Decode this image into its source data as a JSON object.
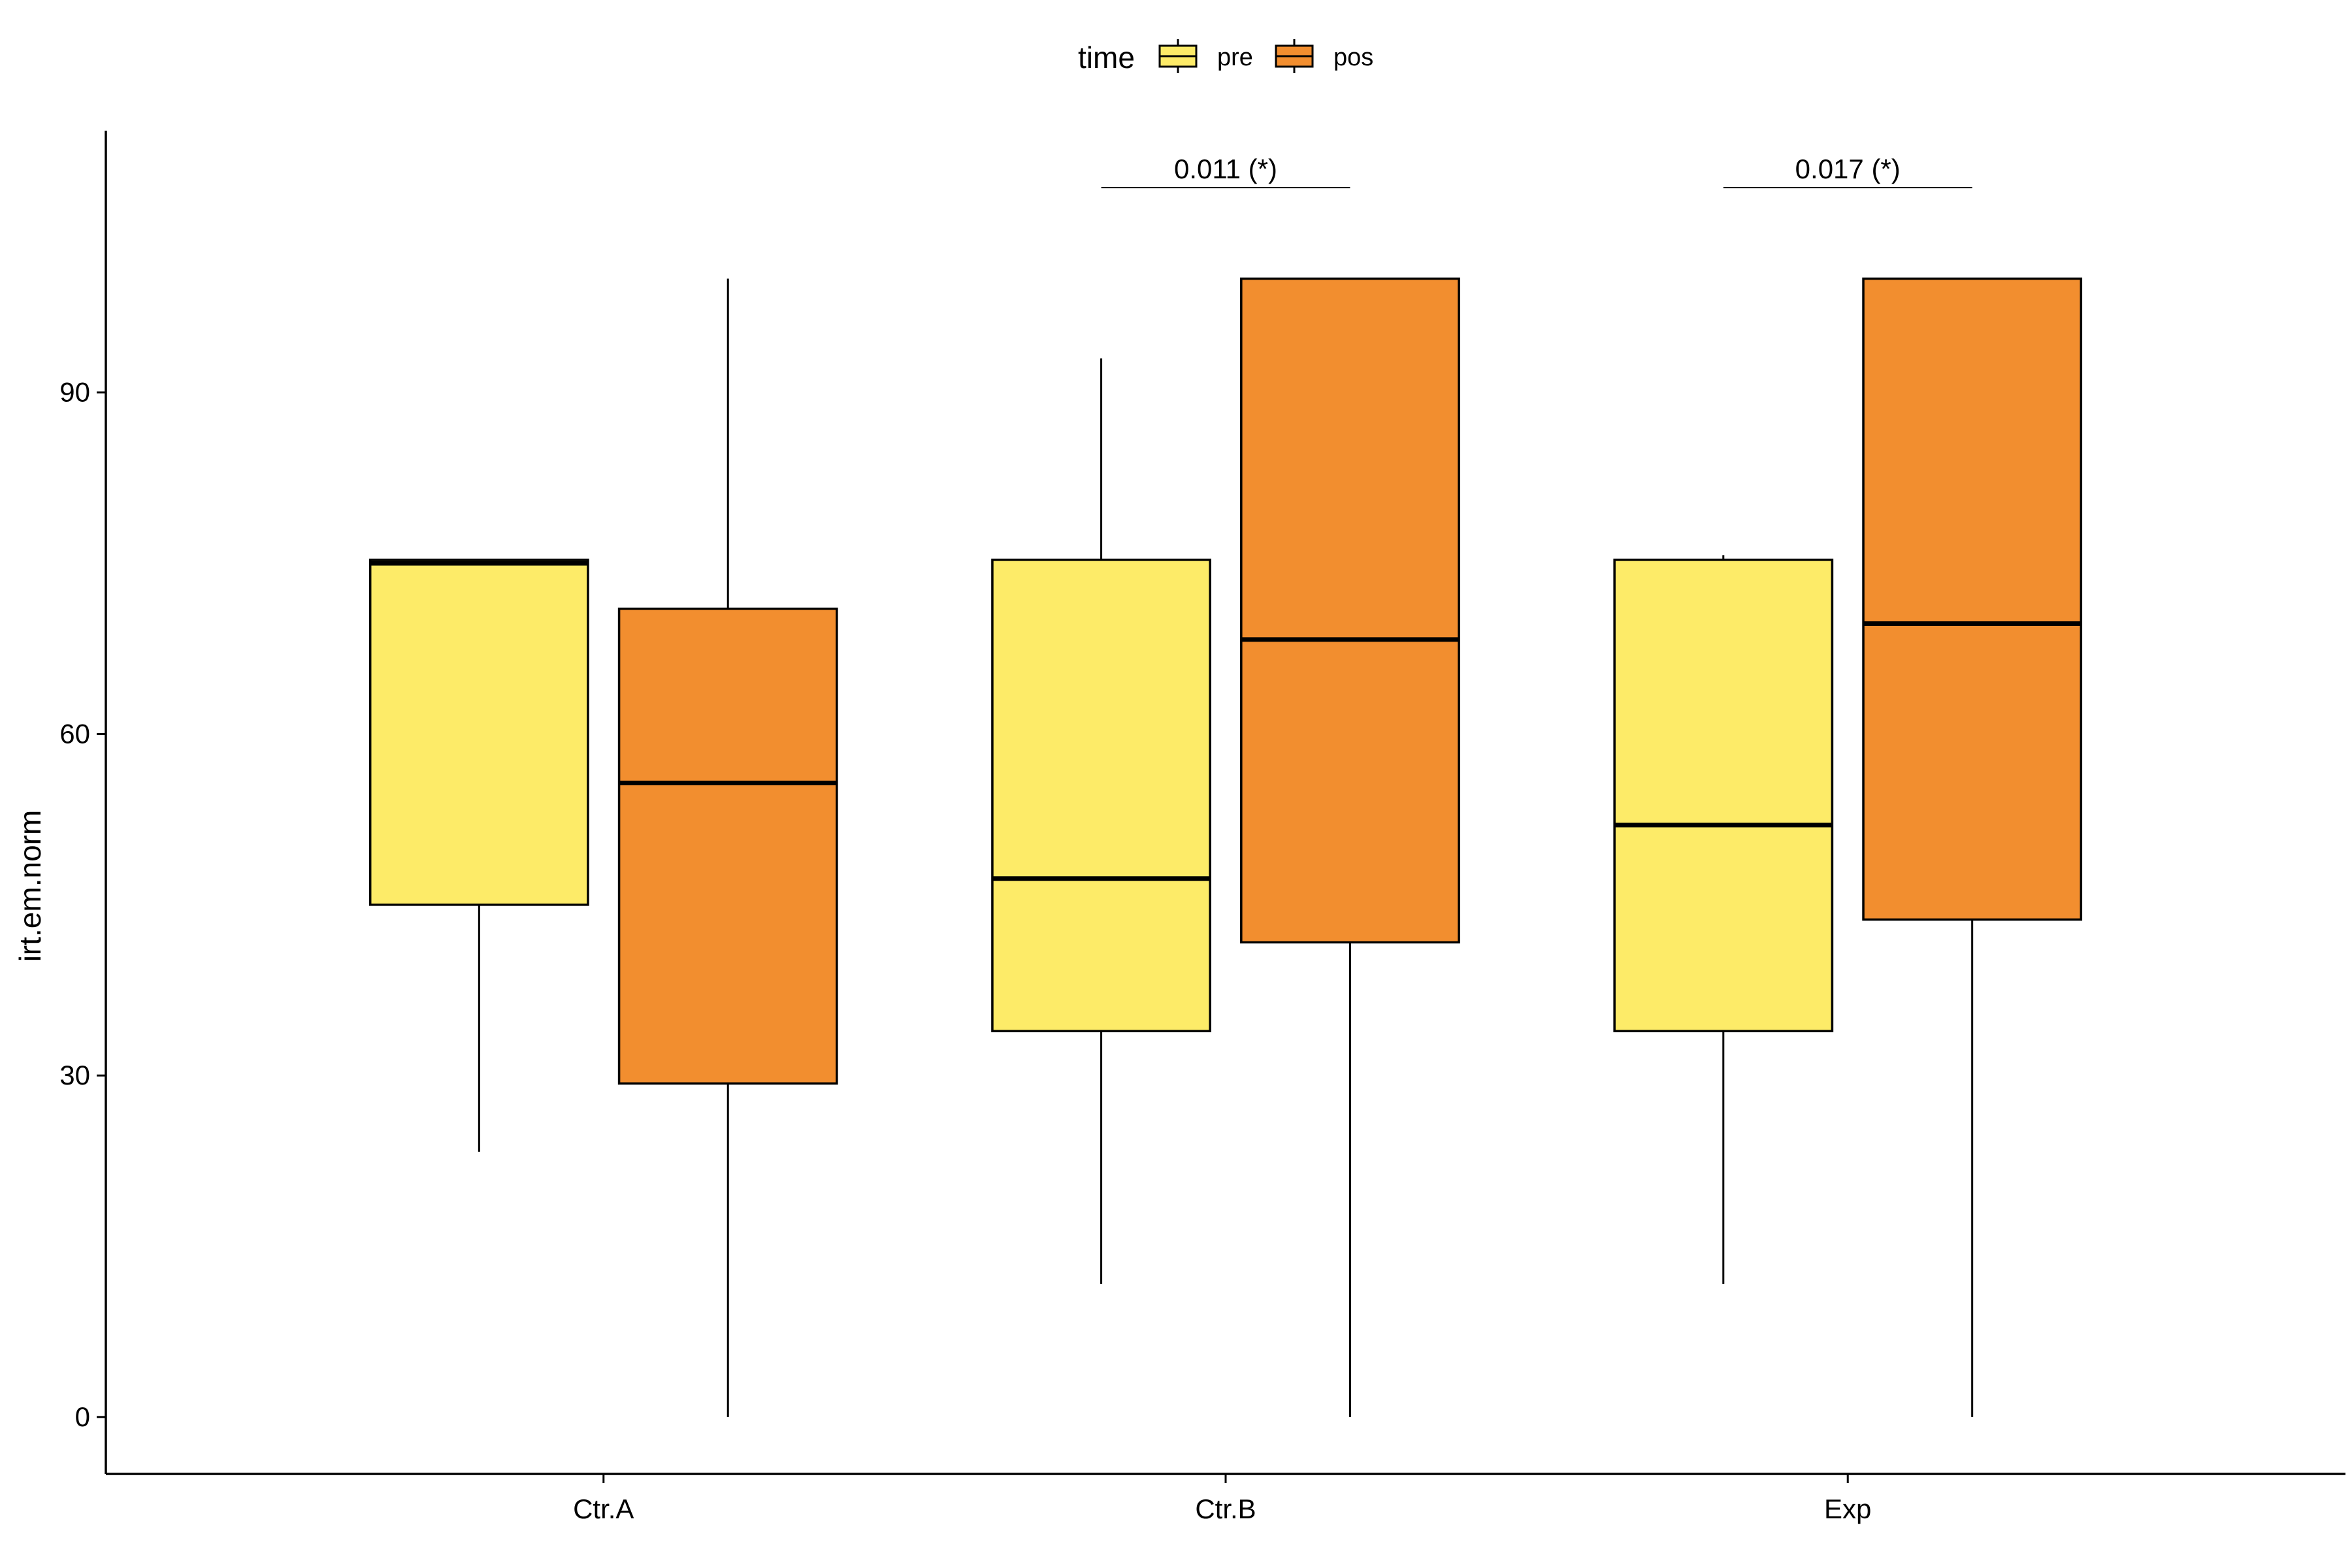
{
  "chart_data": {
    "type": "box",
    "title": "",
    "xlabel": "",
    "ylabel": "irt.em.norm",
    "ylim": [
      -5,
      113
    ],
    "yticks": [
      0,
      30,
      60,
      90
    ],
    "categories": [
      "Ctr.A",
      "Ctr.B",
      "Exp"
    ],
    "grid": false,
    "legend": {
      "title": "time",
      "position": "top",
      "entries": [
        {
          "name": "pre",
          "color": "#FDEB68"
        },
        {
          "name": "pos",
          "color": "#F28E2F"
        }
      ]
    },
    "series": [
      {
        "name": "pre",
        "color": "#FDEB68",
        "boxes": [
          {
            "category": "Ctr.A",
            "min": 23.3,
            "q1": 45.0,
            "median": 75.0,
            "q3": 75.3,
            "max": 75.3
          },
          {
            "category": "Ctr.B",
            "min": 11.7,
            "q1": 33.9,
            "median": 47.3,
            "q3": 75.3,
            "max": 93.0
          },
          {
            "category": "Exp",
            "min": 11.7,
            "q1": 33.9,
            "median": 52.0,
            "q3": 75.3,
            "max": 75.7
          }
        ]
      },
      {
        "name": "pos",
        "color": "#F28E2F",
        "boxes": [
          {
            "category": "Ctr.A",
            "min": 0.0,
            "q1": 29.3,
            "median": 55.7,
            "q3": 71.0,
            "max": 100.0
          },
          {
            "category": "Ctr.B",
            "min": 0.0,
            "q1": 41.7,
            "median": 68.3,
            "q3": 100.0,
            "max": 100.0
          },
          {
            "category": "Exp",
            "min": 0.0,
            "q1": 43.7,
            "median": 69.7,
            "q3": 100.0,
            "max": 100.0
          }
        ]
      }
    ],
    "annotations": [
      {
        "category": "Ctr.B",
        "label": "0.011 (*)",
        "y": 108.0
      },
      {
        "category": "Exp",
        "label": "0.017 (*)",
        "y": 108.0
      }
    ]
  }
}
